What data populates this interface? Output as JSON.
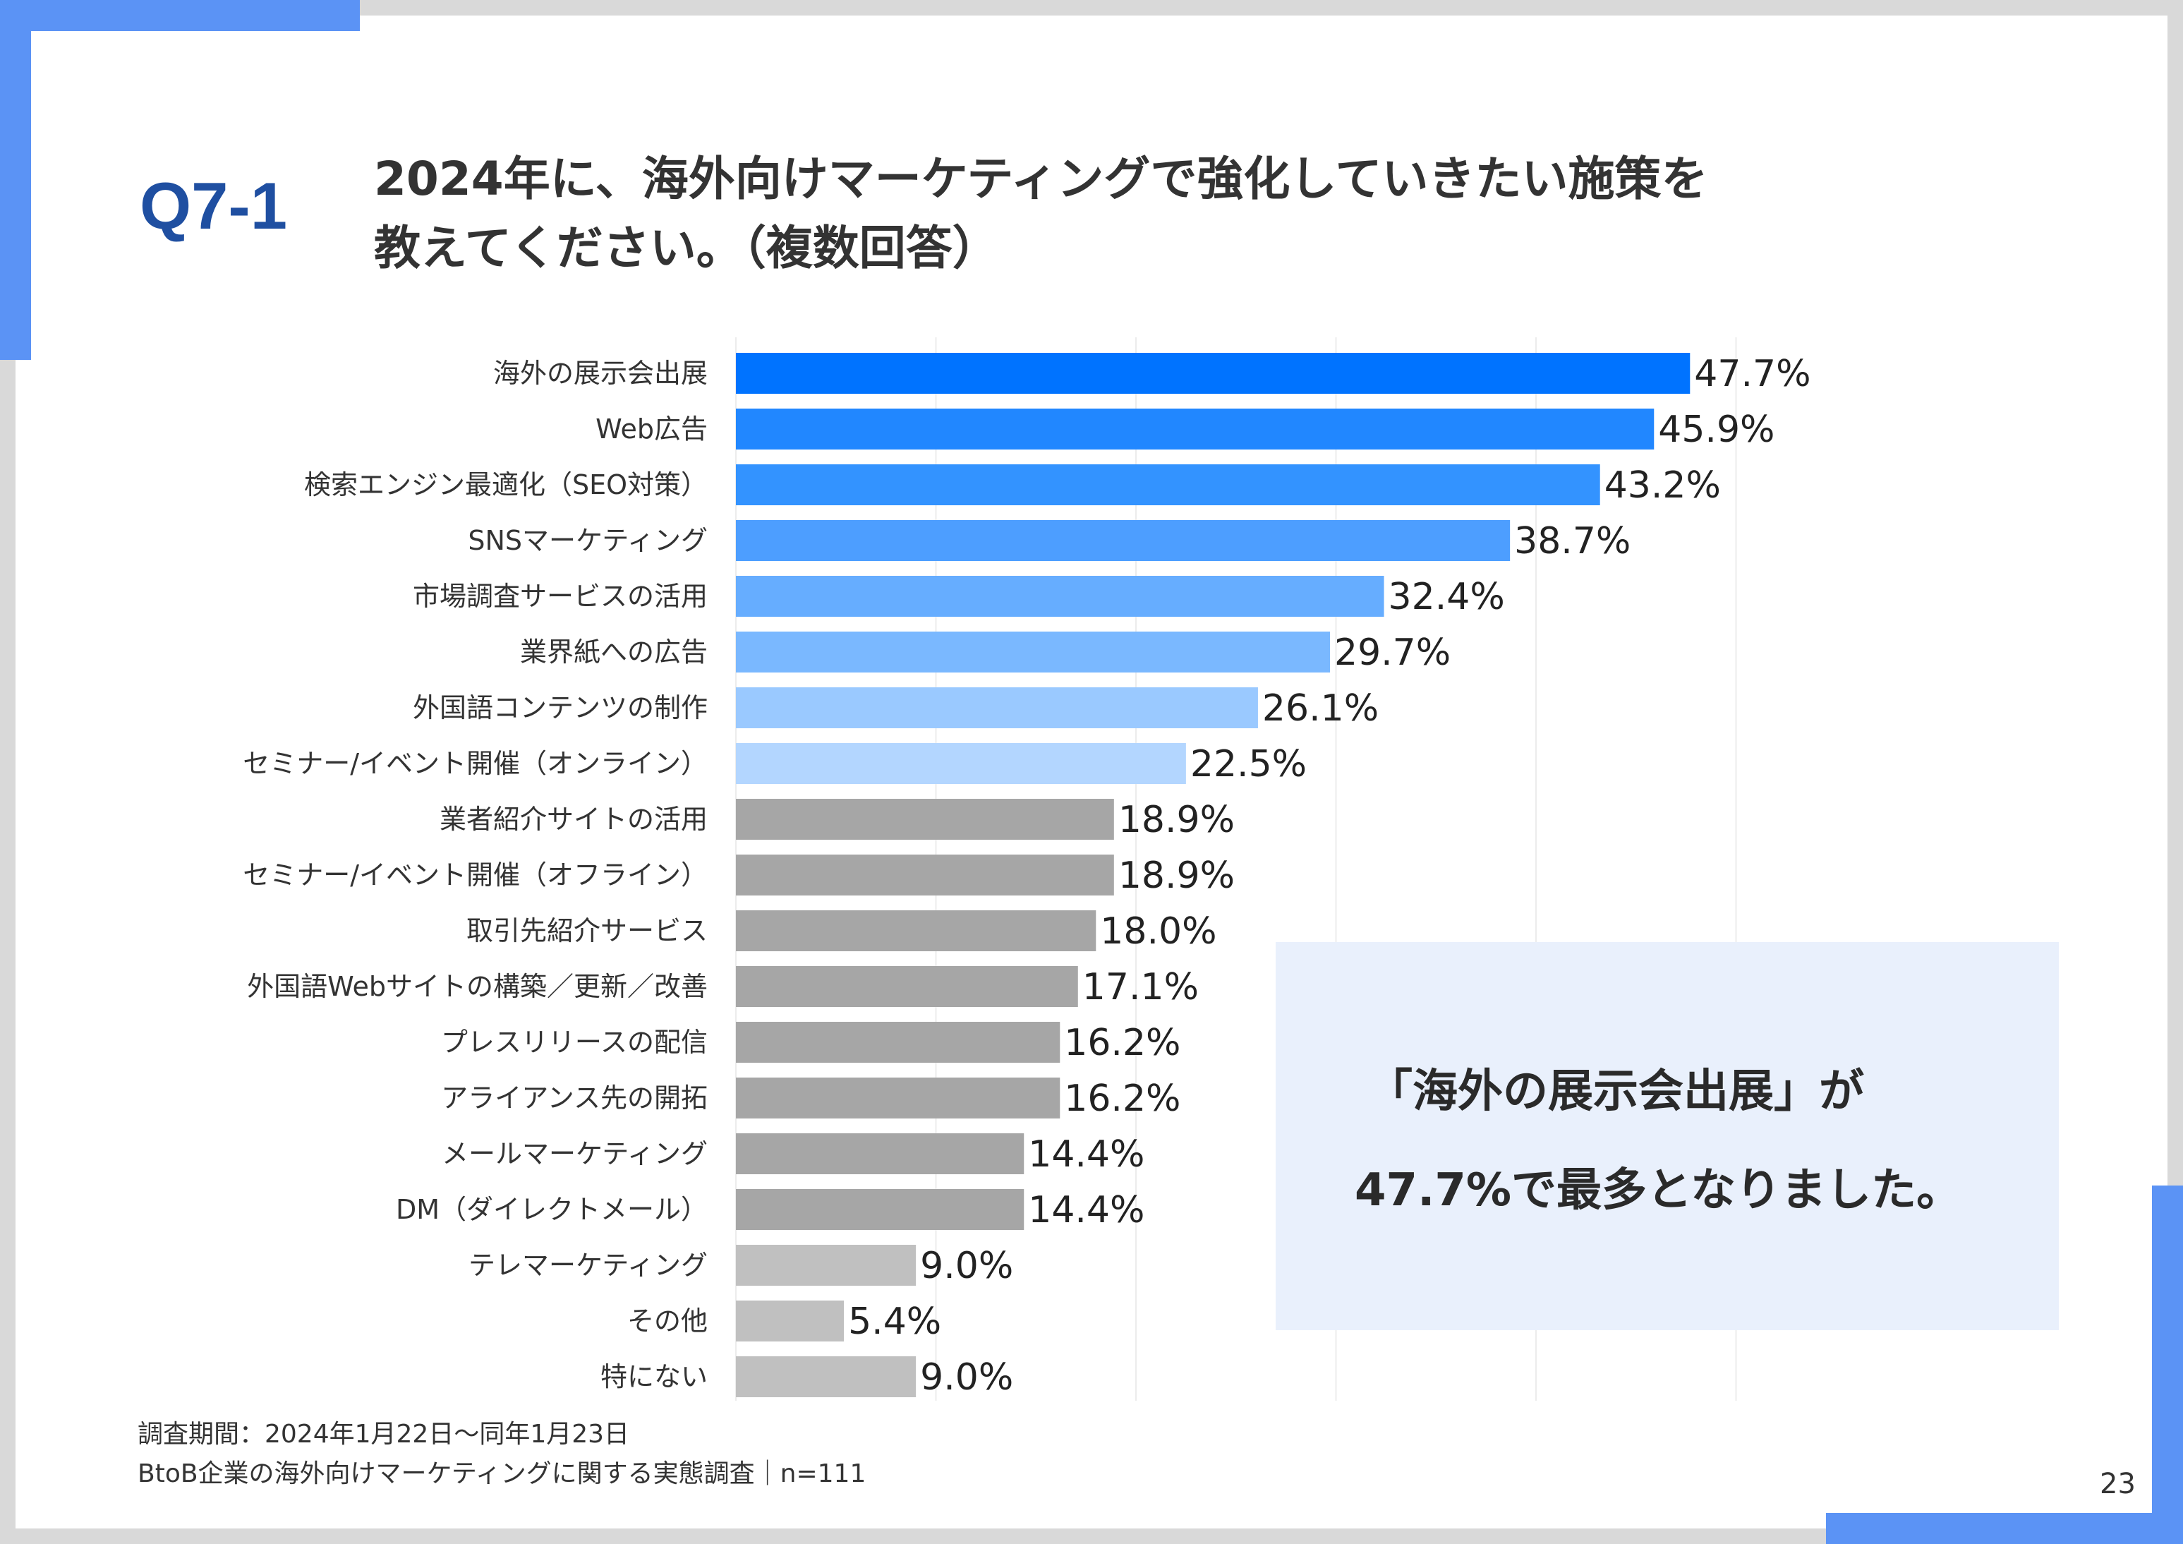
{
  "question": {
    "number": "Q7-1",
    "title_line1": "2024年に、海外向けマーケティングで強化していきたい施策を",
    "title_line2": "教えてください。（複数回答）"
  },
  "chart_data": {
    "type": "bar",
    "orientation": "horizontal",
    "unit": "%",
    "xlim": [
      0,
      50
    ],
    "grid": true,
    "categories": [
      "海外の展示会出展",
      "Web広告",
      "検索エンジン最適化（SEO対策）",
      "SNSマーケティング",
      "市場調査サービスの活用",
      "業界紙への広告",
      "外国語コンテンツの制作",
      "セミナー/イベント開催（オンライン）",
      "業者紹介サイトの活用",
      "セミナー/イベント開催（オフライン）",
      "取引先紹介サービス",
      "外国語Webサイトの構築／更新／改善",
      "プレスリリースの配信",
      "アライアンス先の開拓",
      "メールマーケティング",
      "DM（ダイレクトメール）",
      "テレマーケティング",
      "その他",
      "特にない"
    ],
    "values": [
      47.7,
      45.9,
      43.2,
      38.7,
      32.4,
      29.7,
      26.1,
      22.5,
      18.9,
      18.9,
      18.0,
      17.1,
      16.2,
      16.2,
      14.4,
      14.4,
      9.0,
      5.4,
      9.0
    ],
    "value_labels": [
      "47.7%",
      "45.9%",
      "43.2%",
      "38.7%",
      "32.4%",
      "29.7%",
      "26.1%",
      "22.5%",
      "18.9%",
      "18.9%",
      "18.0%",
      "17.1%",
      "16.2%",
      "16.2%",
      "14.4%",
      "14.4%",
      "9.0%",
      "5.4%",
      "9.0%"
    ],
    "colors": [
      "#0073ff",
      "#2187ff",
      "#3393ff",
      "#4d9eff",
      "#66adff",
      "#7ab8ff",
      "#9ac9ff",
      "#b3d6ff",
      "#a6a6a6",
      "#a6a6a6",
      "#a6a6a6",
      "#a6a6a6",
      "#a6a6a6",
      "#a6a6a6",
      "#a6a6a6",
      "#a6a6a6",
      "#c0c0c0",
      "#c0c0c0",
      "#c0c0c0"
    ]
  },
  "callout": {
    "line1": "「海外の展示会出展」が",
    "line2": "47.7%で最多となりました。"
  },
  "footer": {
    "period": "調査期間：2024年1月22日～同年1月23日",
    "source": "BtoB企業の海外向けマーケティングに関する実態調査｜n=111"
  },
  "page_number": "23",
  "colors": {
    "accent": "#5b93f5",
    "question_number": "#1f4fa1",
    "callout_bg": "#e9f0fc"
  }
}
